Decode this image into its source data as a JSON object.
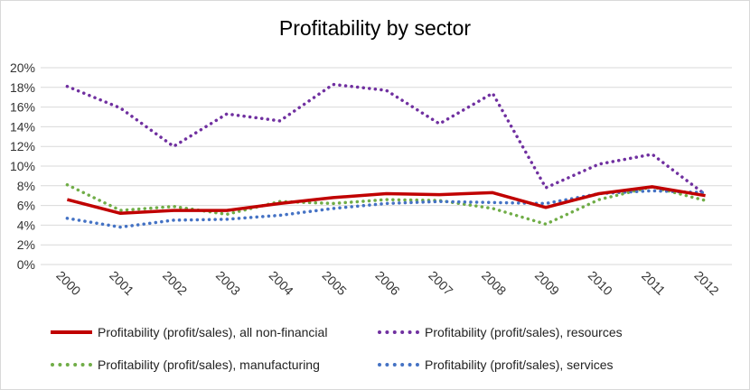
{
  "chart_data": {
    "type": "line",
    "title": "Profitability by sector",
    "xlabel": "",
    "ylabel": "",
    "categories": [
      "2000",
      "2001",
      "2002",
      "2003",
      "2004",
      "2005",
      "2006",
      "2007",
      "2008",
      "2009",
      "2010",
      "2011",
      "2012"
    ],
    "y_ticks": [
      "0%",
      "2%",
      "4%",
      "6%",
      "8%",
      "10%",
      "12%",
      "14%",
      "16%",
      "18%",
      "20%"
    ],
    "ylim": [
      0,
      20
    ],
    "unit": "%",
    "grid": true,
    "legend_position": "bottom",
    "series": [
      {
        "name": "Profitability (profit/sales), all non-financial",
        "style": "solid",
        "color": "#c00000",
        "values": [
          6.6,
          5.2,
          5.5,
          5.5,
          6.2,
          6.8,
          7.2,
          7.1,
          7.3,
          5.8,
          7.2,
          7.9,
          7.0
        ]
      },
      {
        "name": "Profitability (profit/sales), resources",
        "style": "dotted",
        "color": "#7030a0",
        "values": [
          18.1,
          15.9,
          12.0,
          15.3,
          14.6,
          18.3,
          17.7,
          14.3,
          17.4,
          7.8,
          10.2,
          11.2,
          7.1
        ]
      },
      {
        "name": "Profitability (profit/sales), manufacturing",
        "style": "dotted",
        "color": "#70ad47",
        "values": [
          8.1,
          5.5,
          5.9,
          5.1,
          6.4,
          6.2,
          6.6,
          6.5,
          5.7,
          4.1,
          6.6,
          7.9,
          6.5
        ]
      },
      {
        "name": "Profitability (profit/sales), services",
        "style": "dotted",
        "color": "#4472c4",
        "values": [
          4.7,
          3.8,
          4.5,
          4.6,
          5.0,
          5.7,
          6.2,
          6.4,
          6.3,
          6.2,
          7.2,
          7.5,
          7.3
        ]
      }
    ]
  }
}
